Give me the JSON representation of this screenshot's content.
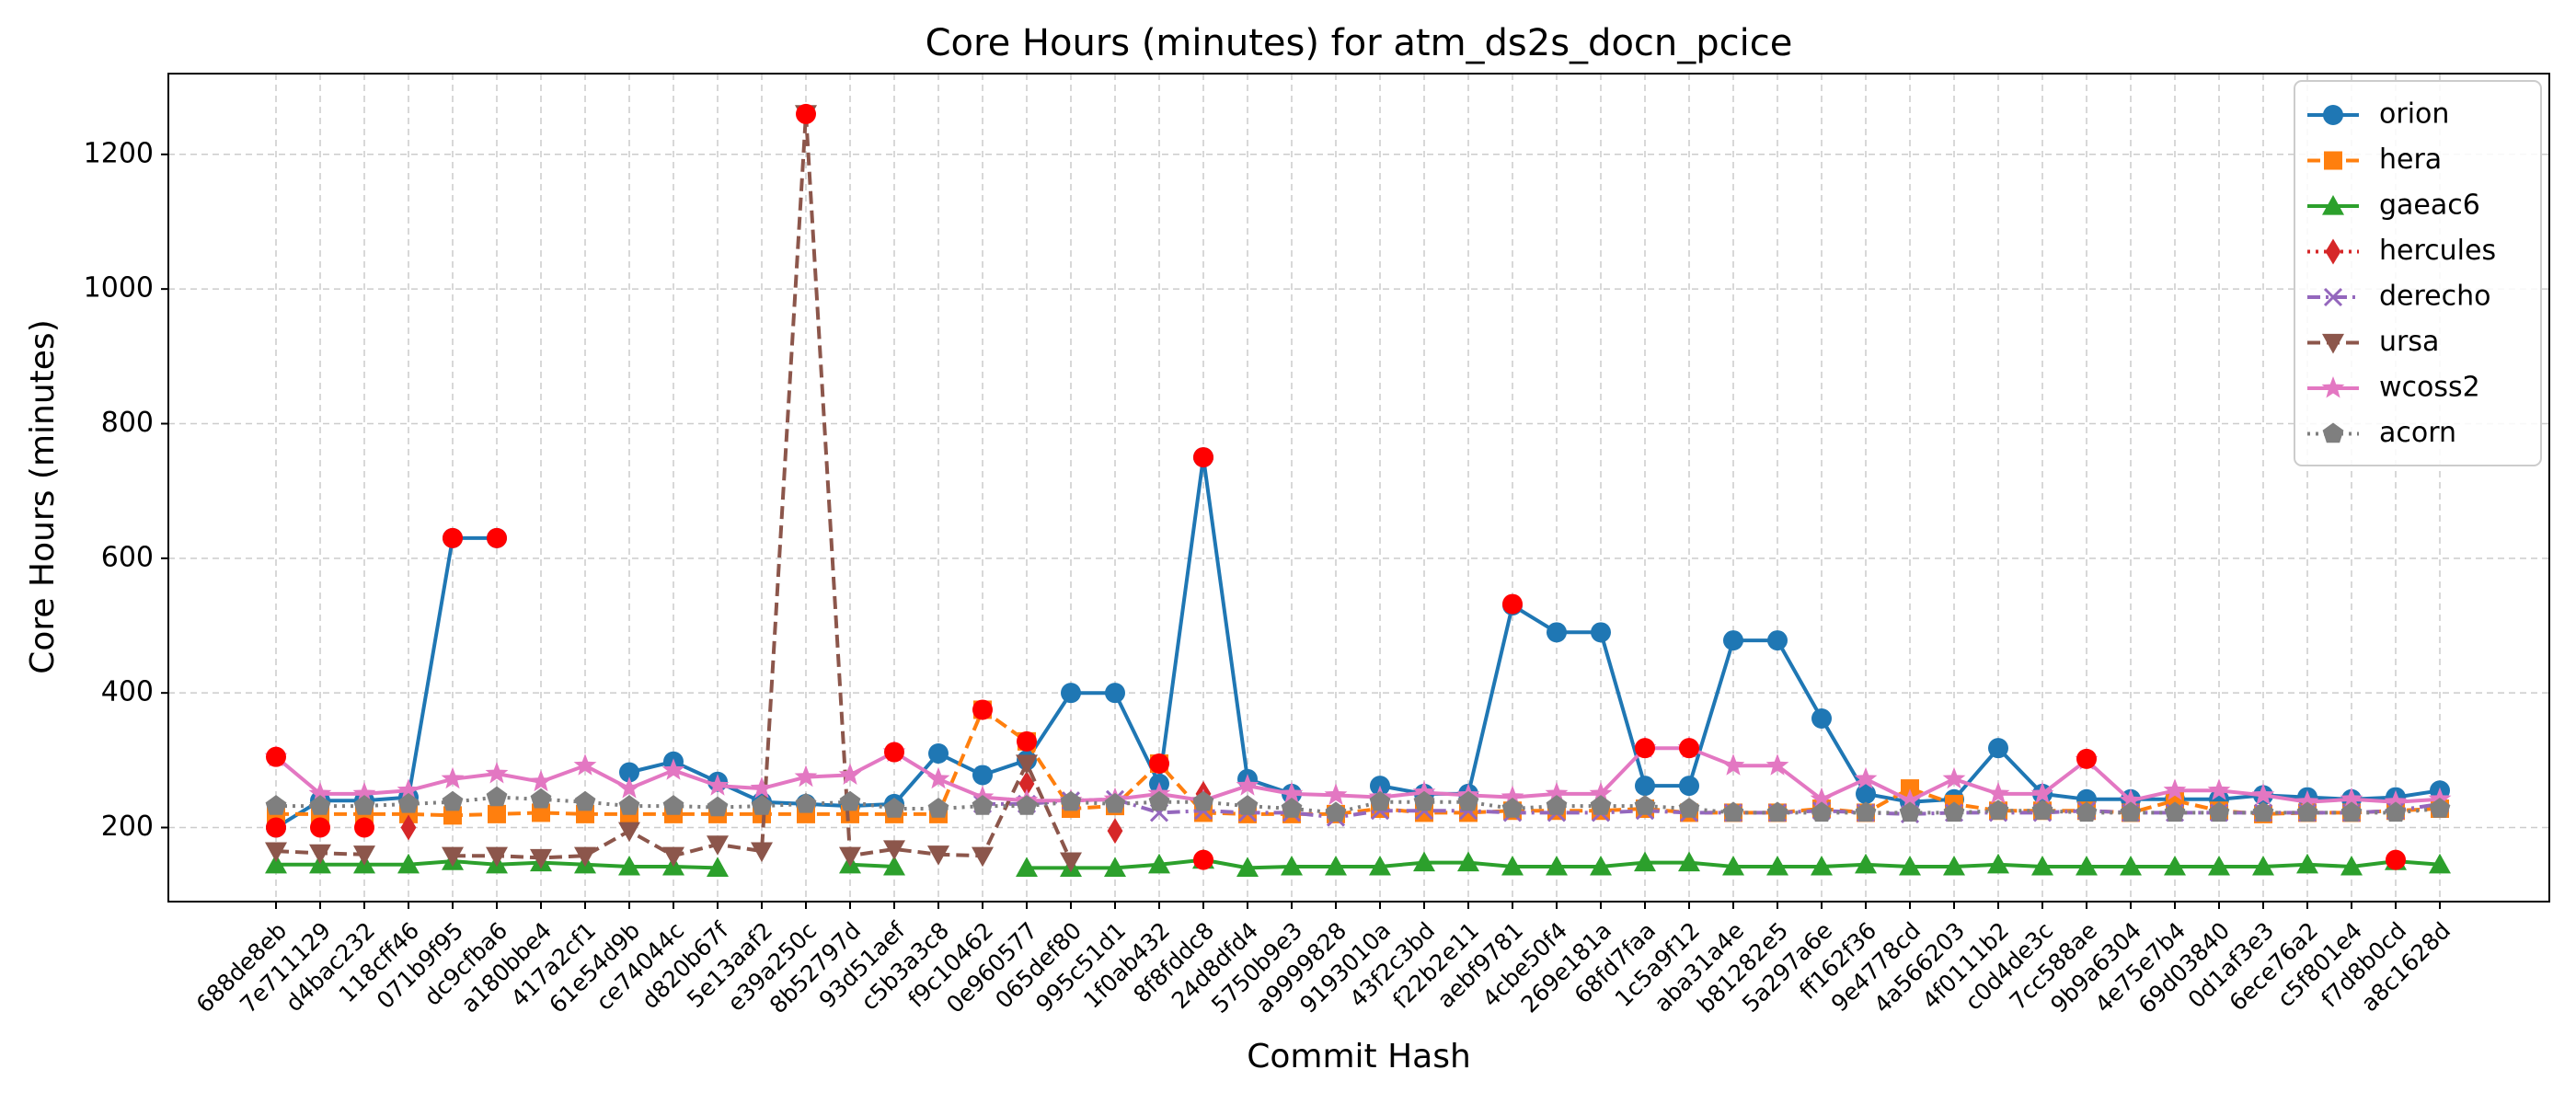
{
  "chart_data": {
    "type": "line",
    "title": "Core Hours (minutes) for atm_ds2s_docn_pcice",
    "xlabel": "Commit Hash",
    "ylabel": "Core Hours (minutes)",
    "ylim": [
      90,
      1320
    ],
    "yticks": [
      200,
      400,
      600,
      800,
      1000,
      1200
    ],
    "grid": true,
    "legend_position": "top-right",
    "categories": [
      "688de8eb",
      "7e711129",
      "d4bac232",
      "118cff46",
      "071b9f95",
      "dc9cfba6",
      "a180bbe4",
      "417a2cf1",
      "61e54d9b",
      "ce74044c",
      "d820b67f",
      "5e13aaf2",
      "e39a250c",
      "8b52797d",
      "93d51aef",
      "c5b3a3c8",
      "f9c10462",
      "0e960577",
      "065def80",
      "995c51d1",
      "1f0ab432",
      "8f8fddc8",
      "24d8dfd4",
      "5750b9e3",
      "a9999828",
      "9193010a",
      "43f2c3bd",
      "f22b2e11",
      "aebf9781",
      "4cbe50f4",
      "269e181a",
      "68fd7faa",
      "1c5a9f12",
      "aba31a4e",
      "b81282e5",
      "5a297a6e",
      "ff162f36",
      "9e4778cd",
      "4a566203",
      "4f0111b2",
      "c0d4de3c",
      "7cc588ae",
      "9b9a6304",
      "4e75e7b4",
      "69d03840",
      "0d1af3e3",
      "6ece76a2",
      "c5f801e4",
      "f7d8b0cd",
      "a8c1628d"
    ],
    "series": [
      {
        "name": "orion",
        "color": "#1f77b4",
        "marker": "circle",
        "dash": "solid",
        "values": [
          200,
          240,
          240,
          245,
          630,
          630,
          null,
          null,
          282,
          298,
          268,
          238,
          235,
          232,
          235,
          310,
          278,
          300,
          400,
          400,
          265,
          750,
          272,
          250,
          null,
          262,
          250,
          250,
          530,
          490,
          490,
          262,
          262,
          478,
          478,
          362,
          250,
          238,
          242,
          318,
          250,
          242,
          242,
          242,
          242,
          248,
          245,
          242,
          245,
          255
        ]
      },
      {
        "name": "hera",
        "color": "#ff7f0e",
        "marker": "square",
        "dash": "dashed",
        "values": [
          220,
          220,
          220,
          220,
          218,
          220,
          222,
          220,
          220,
          220,
          220,
          220,
          220,
          220,
          220,
          220,
          375,
          328,
          228,
          232,
          295,
          222,
          220,
          220,
          220,
          228,
          222,
          222,
          225,
          225,
          225,
          228,
          222,
          222,
          222,
          228,
          222,
          258,
          235,
          225,
          225,
          225,
          222,
          240,
          225,
          220,
          222,
          222,
          225,
          228
        ]
      },
      {
        "name": "gaeac6",
        "color": "#2ca02c",
        "marker": "triangle-up",
        "dash": "solid",
        "values": [
          145,
          145,
          145,
          145,
          150,
          145,
          148,
          145,
          142,
          142,
          140,
          null,
          null,
          145,
          142,
          null,
          null,
          140,
          140,
          140,
          145,
          152,
          140,
          142,
          142,
          142,
          148,
          148,
          142,
          142,
          142,
          148,
          148,
          142,
          142,
          142,
          145,
          142,
          142,
          145,
          142,
          142,
          142,
          142,
          142,
          142,
          145,
          142,
          150,
          145
        ]
      },
      {
        "name": "hercules",
        "color": "#d62728",
        "marker": "diamond",
        "dash": "dotted",
        "values": [
          null,
          null,
          null,
          200,
          null,
          null,
          null,
          null,
          null,
          null,
          null,
          null,
          null,
          null,
          null,
          null,
          null,
          265,
          null,
          195,
          null,
          250,
          null,
          null,
          null,
          null,
          null,
          null,
          null,
          null,
          null,
          null,
          null,
          null,
          null,
          null,
          null,
          null,
          null,
          null,
          null,
          null,
          null,
          null,
          null,
          null,
          null,
          null,
          null,
          null
        ]
      },
      {
        "name": "derecho",
        "color": "#9467bd",
        "marker": "x",
        "dash": "dashdot",
        "values": [
          null,
          null,
          null,
          null,
          null,
          null,
          null,
          null,
          null,
          null,
          null,
          null,
          null,
          null,
          null,
          null,
          235,
          235,
          240,
          242,
          222,
          225,
          222,
          222,
          215,
          225,
          225,
          225,
          222,
          222,
          222,
          225,
          222,
          222,
          222,
          225,
          222,
          220,
          222,
          222,
          222,
          225,
          222,
          222,
          222,
          222,
          222,
          222,
          225,
          235
        ]
      },
      {
        "name": "ursa",
        "color": "#8c564b",
        "marker": "triangle-down",
        "dash": "dashed",
        "values": [
          165,
          162,
          160,
          null,
          158,
          158,
          155,
          158,
          195,
          158,
          175,
          165,
          1260,
          158,
          168,
          160,
          158,
          295,
          150,
          null,
          null,
          null,
          null,
          null,
          null,
          null,
          null,
          null,
          null,
          null,
          null,
          null,
          null,
          null,
          null,
          null,
          null,
          null,
          null,
          null,
          null,
          null,
          null,
          null,
          null,
          null,
          null,
          null,
          null,
          null
        ]
      },
      {
        "name": "wcoss2",
        "color": "#e377c2",
        "marker": "star",
        "dash": "solid",
        "values": [
          305,
          250,
          250,
          255,
          272,
          280,
          268,
          292,
          258,
          285,
          262,
          258,
          275,
          278,
          312,
          272,
          245,
          240,
          240,
          242,
          250,
          240,
          262,
          250,
          248,
          245,
          252,
          248,
          245,
          250,
          250,
          318,
          318,
          292,
          292,
          242,
          272,
          240,
          272,
          250,
          250,
          300,
          240,
          255,
          255,
          248,
          238,
          242,
          238,
          242
        ]
      },
      {
        "name": "acorn",
        "color": "#7f7f7f",
        "marker": "pentagon",
        "dash": "dotted",
        "values": [
          232,
          232,
          232,
          235,
          238,
          245,
          242,
          238,
          232,
          232,
          230,
          232,
          235,
          238,
          228,
          228,
          232,
          232,
          238,
          235,
          238,
          238,
          232,
          228,
          222,
          238,
          238,
          238,
          228,
          232,
          232,
          232,
          228,
          222,
          222,
          222,
          222,
          222,
          222,
          225,
          225,
          222,
          222,
          222,
          222,
          222,
          222,
          222,
          222,
          228
        ]
      }
    ],
    "highlights": {
      "color": "#ff0000",
      "points": [
        {
          "x": "688de8eb",
          "y": 305
        },
        {
          "x": "688de8eb",
          "y": 200
        },
        {
          "x": "7e711129",
          "y": 200
        },
        {
          "x": "d4bac232",
          "y": 200
        },
        {
          "x": "071b9f95",
          "y": 630
        },
        {
          "x": "dc9cfba6",
          "y": 630
        },
        {
          "x": "e39a250c",
          "y": 1260
        },
        {
          "x": "93d51aef",
          "y": 312
        },
        {
          "x": "f9c10462",
          "y": 375
        },
        {
          "x": "0e960577",
          "y": 328
        },
        {
          "x": "1f0ab432",
          "y": 295
        },
        {
          "x": "8f8fddc8",
          "y": 750
        },
        {
          "x": "8f8fddc8",
          "y": 152
        },
        {
          "x": "aebf9781",
          "y": 532
        },
        {
          "x": "68fd7faa",
          "y": 318
        },
        {
          "x": "1c5a9f12",
          "y": 318
        },
        {
          "x": "7cc588ae",
          "y": 302
        },
        {
          "x": "f7d8b0cd",
          "y": 152
        }
      ]
    }
  }
}
